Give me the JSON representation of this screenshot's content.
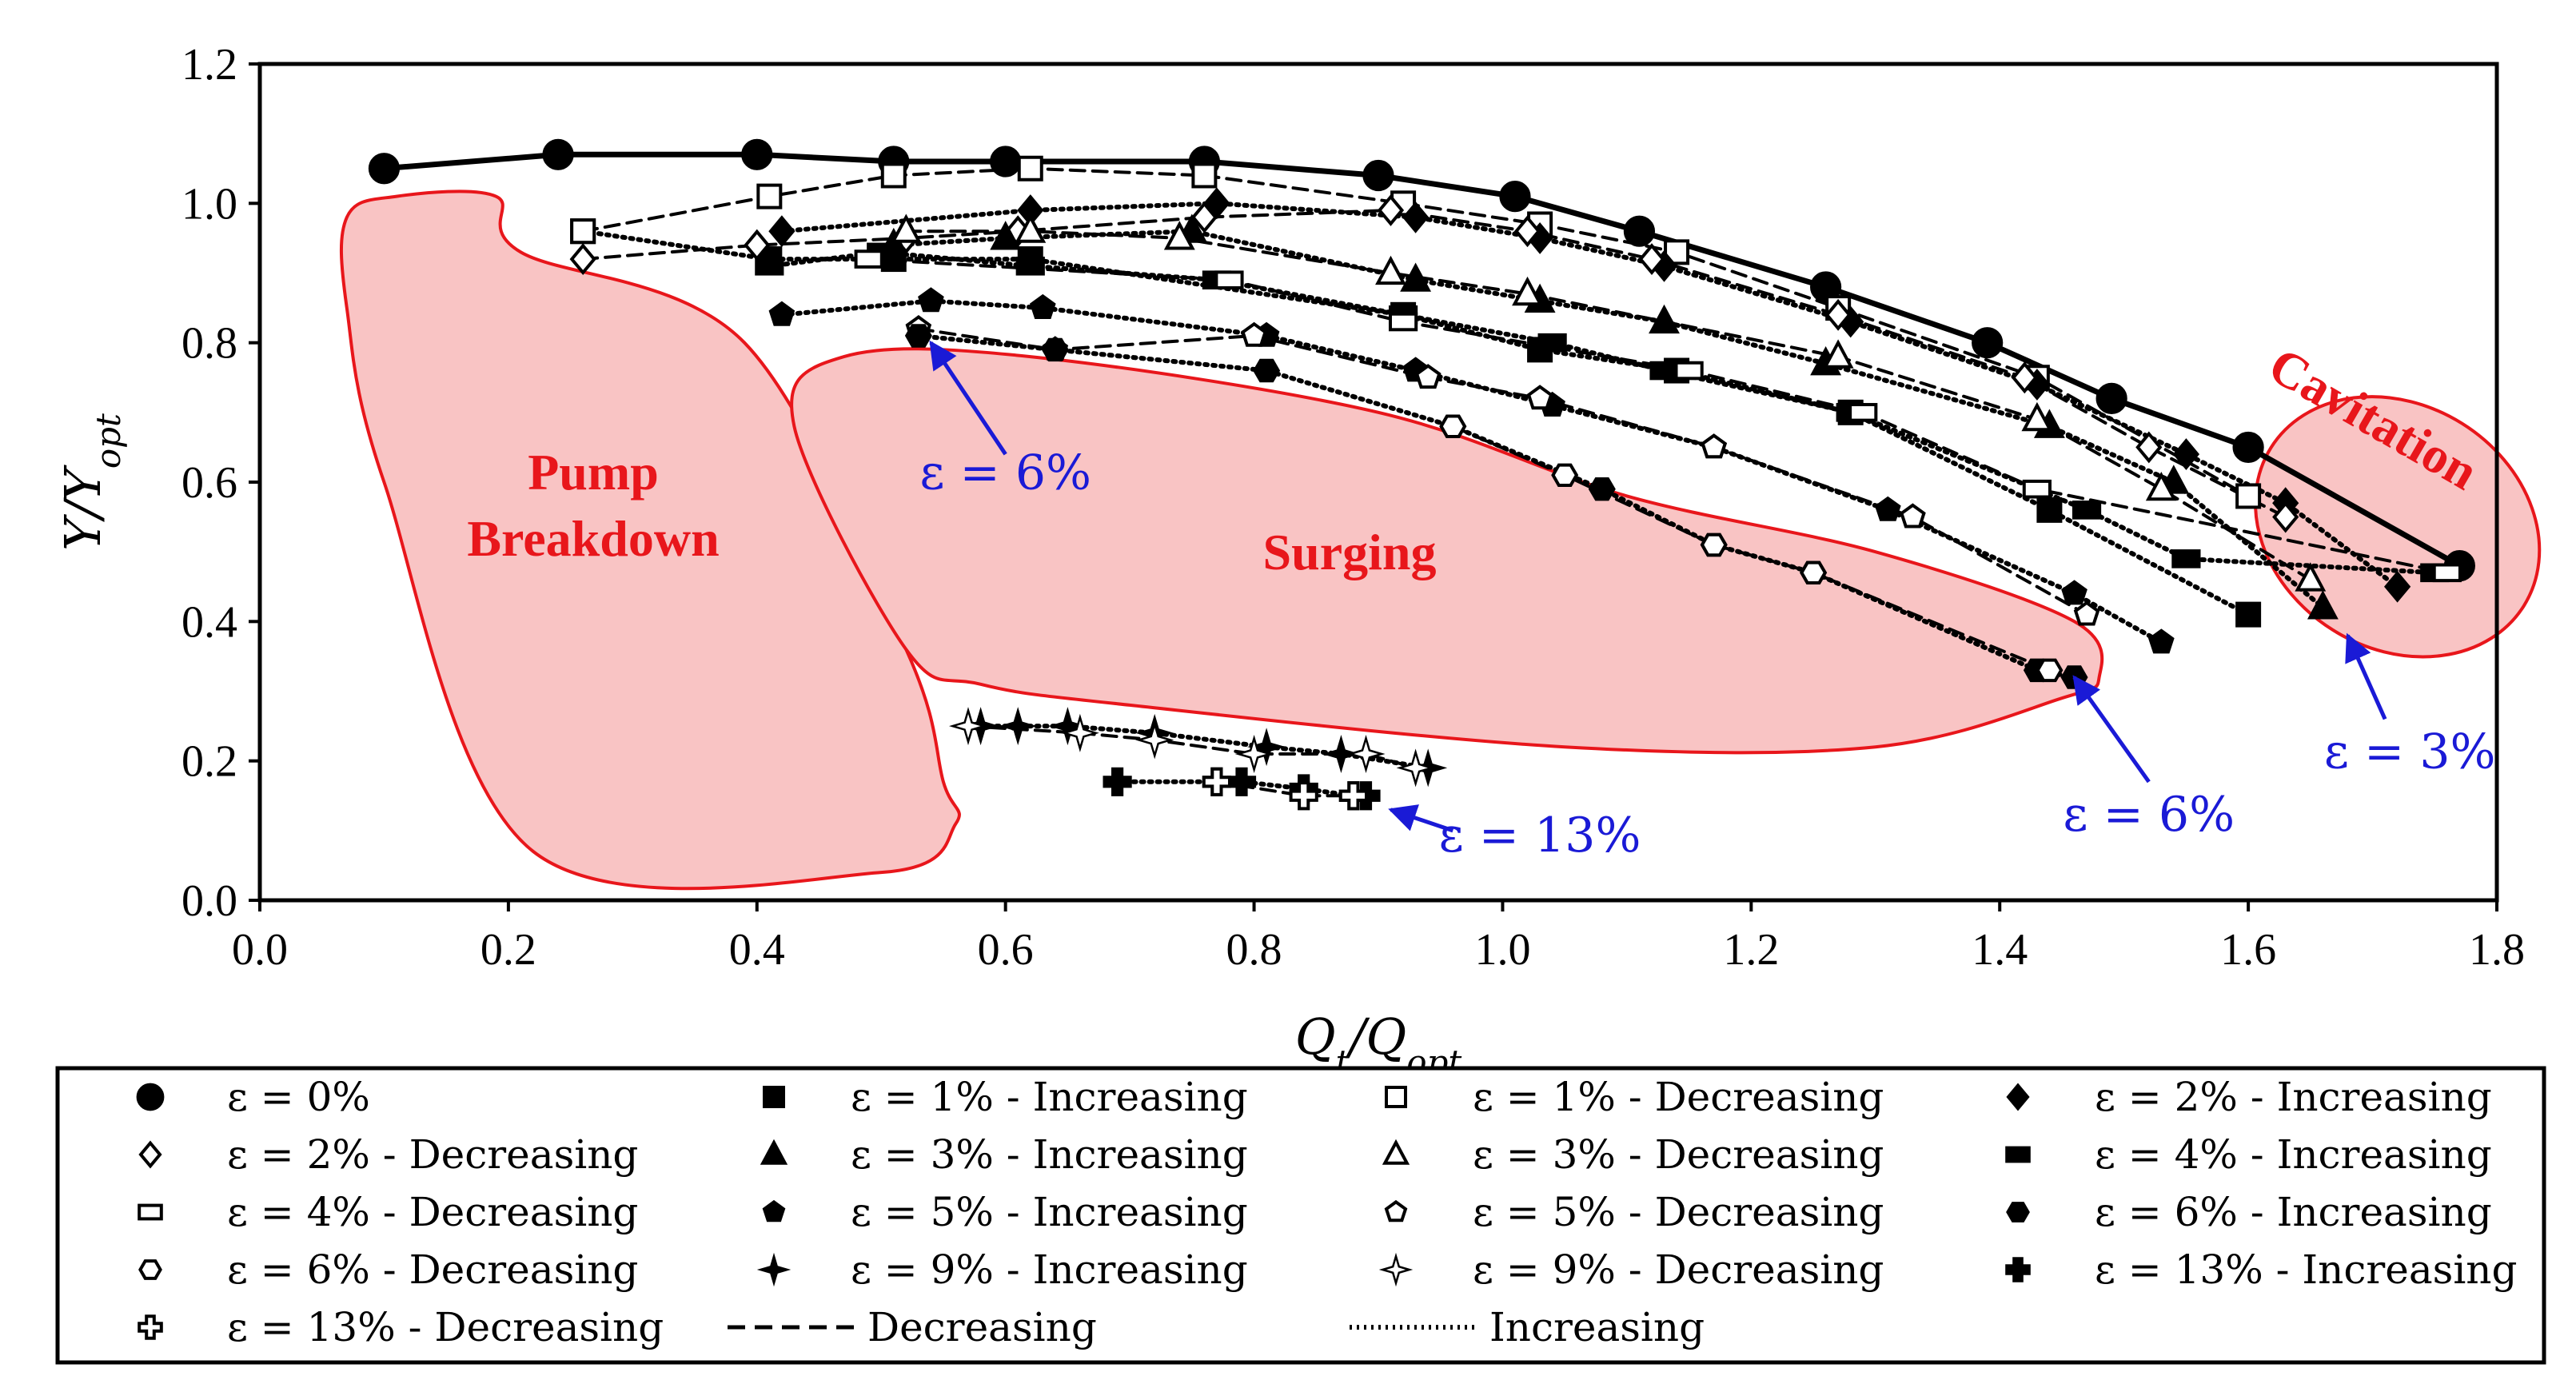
{
  "chart_data": {
    "type": "scatter",
    "xlabel": "Q_t/Q_opt",
    "ylabel": "Υ/Υ_opt",
    "xlim": [
      0.0,
      1.8
    ],
    "ylim": [
      0.0,
      1.2
    ],
    "xticks": [
      "0.0",
      "0.2",
      "0.4",
      "0.6",
      "0.8",
      "1.0",
      "1.2",
      "1.4",
      "1.6",
      "1.8"
    ],
    "yticks": [
      "0.0",
      "0.2",
      "0.4",
      "0.6",
      "0.8",
      "1.0",
      "1.2"
    ],
    "grid": false,
    "series": [
      {
        "name": "ε = 0%",
        "marker": "circle",
        "fill": "filled",
        "line": "solid",
        "x": [
          0.1,
          0.24,
          0.4,
          0.51,
          0.6,
          0.76,
          0.9,
          1.01,
          1.11,
          1.26,
          1.39,
          1.49,
          1.6,
          1.77
        ],
        "y": [
          1.05,
          1.07,
          1.07,
          1.06,
          1.06,
          1.06,
          1.04,
          1.01,
          0.96,
          0.88,
          0.8,
          0.72,
          0.65,
          0.48
        ]
      },
      {
        "name": "ε = 1% - Increasing",
        "marker": "square",
        "fill": "filled",
        "line": "dotted",
        "x": [
          0.26,
          0.41,
          0.51,
          0.62,
          0.92,
          1.03,
          1.14,
          1.28,
          1.44,
          1.6
        ],
        "y": [
          0.96,
          0.92,
          0.92,
          0.92,
          0.84,
          0.79,
          0.76,
          0.7,
          0.56,
          0.41
        ]
      },
      {
        "name": "ε = 1% - Decreasing",
        "marker": "square",
        "fill": "open",
        "line": "dashed",
        "x": [
          0.26,
          0.41,
          0.51,
          0.62,
          0.76,
          0.92,
          1.03,
          1.14,
          1.27,
          1.43,
          1.6
        ],
        "y": [
          0.96,
          1.01,
          1.04,
          1.05,
          1.04,
          1.0,
          0.97,
          0.93,
          0.85,
          0.75,
          0.58
        ]
      },
      {
        "name": "ε = 2% - Increasing",
        "marker": "diamond",
        "fill": "filled",
        "line": "dotted",
        "x": [
          0.42,
          0.62,
          0.77,
          0.93,
          1.03,
          1.13,
          1.28,
          1.43,
          1.55,
          1.63,
          1.72
        ],
        "y": [
          0.96,
          0.99,
          1.0,
          0.98,
          0.95,
          0.91,
          0.83,
          0.74,
          0.64,
          0.57,
          0.45
        ]
      },
      {
        "name": "ε = 2% - Decreasing",
        "marker": "diamond",
        "fill": "open",
        "line": "dashed",
        "x": [
          0.26,
          0.4,
          0.52,
          0.61,
          0.76,
          0.91,
          1.02,
          1.12,
          1.27,
          1.42,
          1.52,
          1.63
        ],
        "y": [
          0.92,
          0.94,
          0.95,
          0.96,
          0.98,
          0.99,
          0.96,
          0.92,
          0.84,
          0.75,
          0.65,
          0.55
        ]
      },
      {
        "name": "ε = 3% - Increasing",
        "marker": "triangle",
        "fill": "filled",
        "line": "dotted",
        "x": [
          0.51,
          0.6,
          0.75,
          0.93,
          1.03,
          1.13,
          1.26,
          1.44,
          1.54,
          1.66
        ],
        "y": [
          0.94,
          0.95,
          0.96,
          0.89,
          0.86,
          0.83,
          0.77,
          0.68,
          0.6,
          0.42
        ]
      },
      {
        "name": "ε = 3% - Decreasing",
        "marker": "triangle",
        "fill": "open",
        "line": "dashed",
        "x": [
          0.52,
          0.62,
          0.74,
          0.91,
          1.02,
          1.27,
          1.43,
          1.53,
          1.65
        ],
        "y": [
          0.96,
          0.96,
          0.95,
          0.9,
          0.87,
          0.78,
          0.69,
          0.59,
          0.46
        ]
      },
      {
        "name": "ε = 4% - Increasing",
        "marker": "rect",
        "fill": "filled",
        "line": "dotted",
        "x": [
          0.41,
          0.5,
          0.62,
          0.77,
          0.92,
          1.04,
          1.13,
          1.28,
          1.47,
          1.55,
          1.75
        ],
        "y": [
          0.91,
          0.93,
          0.91,
          0.89,
          0.84,
          0.8,
          0.76,
          0.7,
          0.56,
          0.49,
          0.47
        ]
      },
      {
        "name": "ε = 4% - Decreasing",
        "marker": "rect",
        "fill": "open",
        "line": "dashed",
        "x": [
          0.49,
          0.78,
          0.92,
          1.15,
          1.29,
          1.43,
          1.76
        ],
        "y": [
          0.92,
          0.89,
          0.83,
          0.76,
          0.7,
          0.59,
          0.47
        ]
      },
      {
        "name": "ε = 5% - Increasing",
        "marker": "pentagon",
        "fill": "filled",
        "line": "dotted",
        "x": [
          0.42,
          0.54,
          0.63,
          0.81,
          0.93,
          1.04,
          1.17,
          1.31,
          1.46,
          1.53
        ],
        "y": [
          0.84,
          0.86,
          0.85,
          0.81,
          0.76,
          0.71,
          0.65,
          0.56,
          0.44,
          0.37
        ]
      },
      {
        "name": "ε = 5% - Decreasing",
        "marker": "pentagon",
        "fill": "open",
        "line": "dashed",
        "x": [
          0.53,
          0.64,
          0.8,
          0.94,
          1.03,
          1.17,
          1.33,
          1.47
        ],
        "y": [
          0.82,
          0.79,
          0.81,
          0.75,
          0.72,
          0.65,
          0.55,
          0.41
        ]
      },
      {
        "name": "ε = 6% - Increasing",
        "marker": "hexagon",
        "fill": "filled",
        "line": "dotted",
        "x": [
          0.53,
          0.64,
          0.81,
          0.96,
          1.08,
          1.17,
          1.25,
          1.43,
          1.46
        ],
        "y": [
          0.81,
          0.79,
          0.76,
          0.68,
          0.59,
          0.51,
          0.47,
          0.33,
          0.32
        ]
      },
      {
        "name": "ε = 6% - Decreasing",
        "marker": "hexagon",
        "fill": "open",
        "line": "dashed",
        "x": [
          0.96,
          1.05,
          1.17,
          1.25,
          1.44
        ],
        "y": [
          0.68,
          0.61,
          0.51,
          0.47,
          0.33
        ]
      },
      {
        "name": "ε = 9% - Increasing",
        "marker": "star4",
        "fill": "filled",
        "line": "dotted",
        "x": [
          0.58,
          0.61,
          0.65,
          0.72,
          0.81,
          0.87,
          0.94
        ],
        "y": [
          0.25,
          0.25,
          0.25,
          0.24,
          0.22,
          0.21,
          0.19
        ]
      },
      {
        "name": "ε = 9% - Decreasing",
        "marker": "star4",
        "fill": "open",
        "line": "dashed",
        "x": [
          0.57,
          0.66,
          0.72,
          0.8,
          0.89,
          0.93
        ],
        "y": [
          0.25,
          0.24,
          0.23,
          0.21,
          0.21,
          0.19
        ]
      },
      {
        "name": "ε = 13% - Increasing",
        "marker": "cross",
        "fill": "filled",
        "line": "dotted",
        "x": [
          0.69,
          0.77,
          0.79,
          0.84,
          0.88,
          0.89
        ],
        "y": [
          0.17,
          0.17,
          0.17,
          0.16,
          0.15,
          0.15
        ]
      },
      {
        "name": "ε = 13% - Decreasing",
        "marker": "cross",
        "fill": "open",
        "line": "dashed",
        "x": [
          0.77,
          0.84,
          0.88
        ],
        "y": [
          0.17,
          0.15,
          0.15
        ]
      }
    ],
    "legend": {
      "placement": "bottom",
      "entries": [
        "ε = 0%",
        "ε = 1% - Increasing",
        "ε = 1% - Decreasing",
        "ε = 2% - Increasing",
        "ε = 2% - Decreasing",
        "ε = 3% - Increasing",
        "ε = 3% - Decreasing",
        "ε = 4% - Increasing",
        "ε = 4% - Decreasing",
        "ε = 5% - Increasing",
        "ε = 5% - Decreasing",
        "ε = 6% - Increasing",
        "ε = 6% - Decreasing",
        "ε = 9% - Increasing",
        "ε = 9% - Decreasing",
        "ε = 13% - Increasing",
        "ε = 13% - Decreasing",
        "Decreasing",
        "Increasing"
      ]
    },
    "annotations": {
      "regions": [
        {
          "id": "pump-breakdown",
          "lines": [
            "Pump",
            "Breakdown"
          ],
          "color": "#e8161b",
          "fill": "#f9c4c4",
          "outline": [
            [
              0.07,
              0.98
            ],
            [
              0.11,
              1.01
            ],
            [
              0.19,
              1.01
            ],
            [
              0.21,
              0.93
            ],
            [
              0.39,
              0.8
            ],
            [
              0.52,
              0.36
            ],
            [
              0.55,
              0.17
            ],
            [
              0.56,
              0.11
            ],
            [
              0.5,
              0.04
            ],
            [
              0.22,
              0.07
            ],
            [
              0.1,
              0.6
            ],
            [
              0.07,
              0.85
            ]
          ]
        },
        {
          "id": "surging",
          "lines": [
            "Surging"
          ],
          "color": "#e8161b",
          "fill": "#f9c4c4",
          "outline": [
            [
              0.43,
              0.68
            ],
            [
              0.47,
              0.78
            ],
            [
              0.62,
              0.78
            ],
            [
              0.9,
              0.7
            ],
            [
              1.1,
              0.58
            ],
            [
              1.3,
              0.5
            ],
            [
              1.46,
              0.4
            ],
            [
              1.48,
              0.32
            ],
            [
              1.45,
              0.29
            ],
            [
              1.3,
              0.22
            ],
            [
              1.05,
              0.22
            ],
            [
              0.7,
              0.28
            ],
            [
              0.58,
              0.31
            ],
            [
              0.52,
              0.36
            ]
          ]
        },
        {
          "id": "cavitation",
          "lines": [
            "Cavitation"
          ],
          "color": "#e8161b",
          "fill": "#f9c4c4",
          "ellipse": {
            "cx": 1.72,
            "cy": 0.536,
            "rx": 0.12,
            "ry": 0.028,
            "angle": 32
          }
        }
      ],
      "epsilon_labels": [
        {
          "text": "ε = 6%",
          "at": [
            0.6,
            0.59
          ],
          "arrow_to": [
            0.54,
            0.8
          ]
        },
        {
          "text": "ε = 6%",
          "at": [
            1.52,
            0.1
          ],
          "arrow_to": [
            1.46,
            0.32
          ]
        },
        {
          "text": "ε = 3%",
          "at": [
            1.73,
            0.19
          ],
          "arrow_to": [
            1.68,
            0.38
          ]
        },
        {
          "text": "ε = 13%",
          "at": [
            1.03,
            0.07
          ],
          "arrow_to": [
            0.91,
            0.13
          ]
        }
      ]
    }
  }
}
